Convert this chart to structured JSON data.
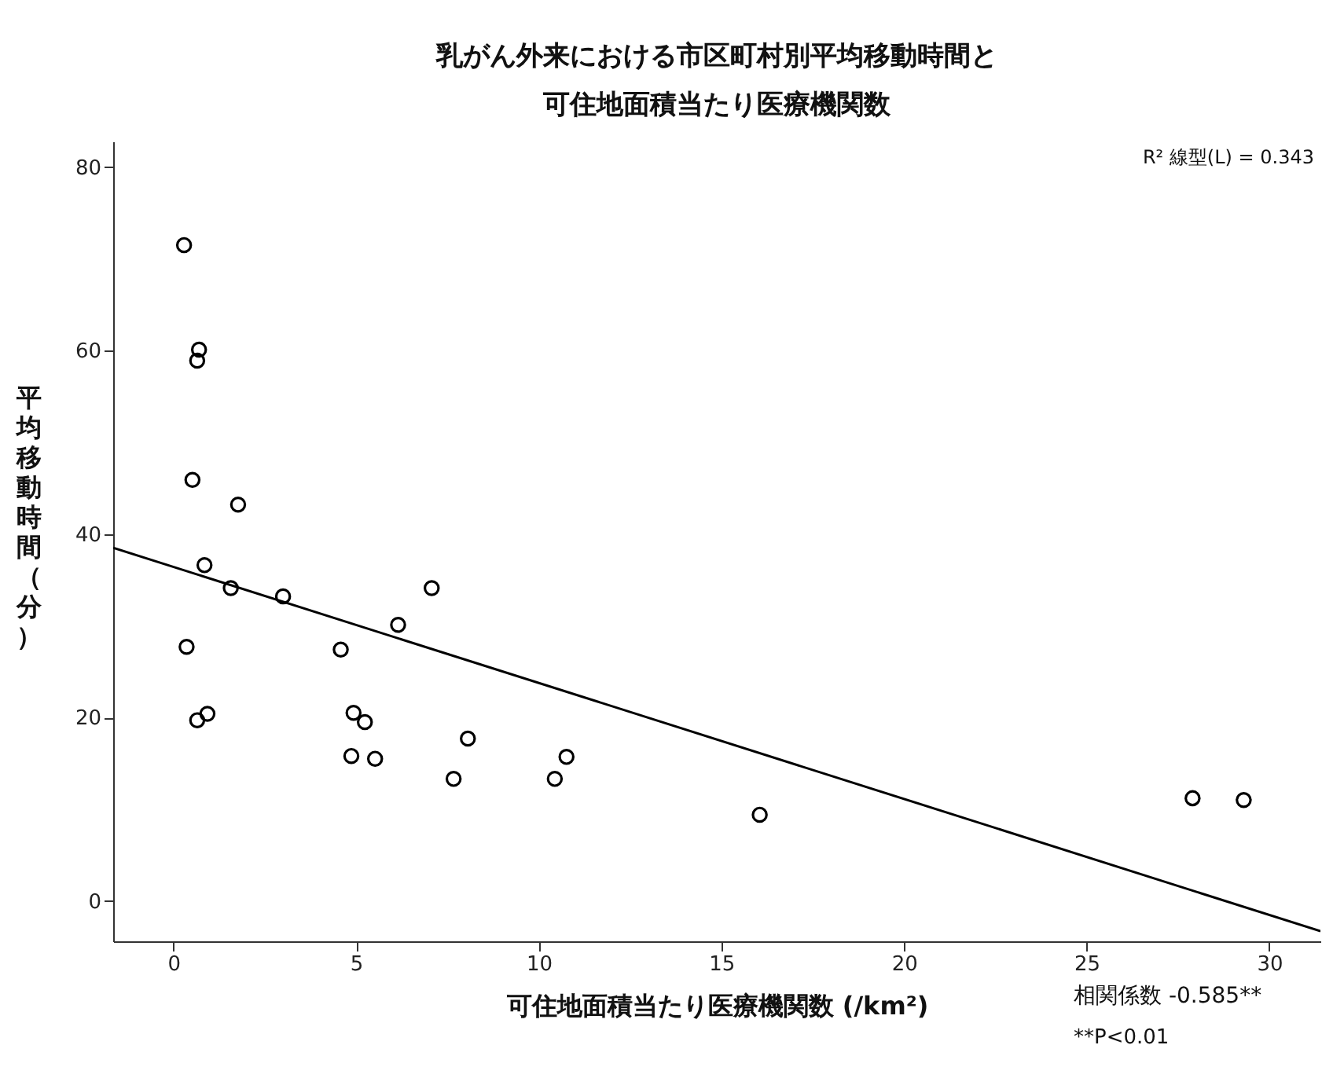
{
  "chart_data": {
    "type": "scatter",
    "title": "乳がん外来における市区町村別平均移動時間と",
    "subtitle": "可住地面積当たり医療機関数",
    "xlabel": "可住地面積当たり医療機関数 (/km²)",
    "ylabel": "平均移動時間（分）",
    "xlim": [
      -1.65,
      31.4
    ],
    "ylim": [
      -4.4,
      82.8
    ],
    "xticks": [
      0,
      5,
      10,
      15,
      20,
      25,
      30
    ],
    "yticks": [
      0,
      20,
      40,
      60,
      80
    ],
    "marker": "circle",
    "series": [
      {
        "color": "#000000",
        "x": [
          0.29,
          0.7,
          0.65,
          0.52,
          1.77,
          0.85,
          1.57,
          3.0,
          7.07,
          6.15,
          0.36,
          4.58,
          0.65,
          0.93,
          4.93,
          5.24,
          4.87,
          5.52,
          8.06,
          7.67,
          10.44,
          10.76,
          16.05,
          27.9,
          29.3
        ],
        "values": [
          71.5,
          60.1,
          58.9,
          45.9,
          43.2,
          36.6,
          34.1,
          33.2,
          34.1,
          30.1,
          27.7,
          27.4,
          19.7,
          20.4,
          20.5,
          19.5,
          15.8,
          15.5,
          17.7,
          13.3,
          13.3,
          15.7,
          9.4,
          11.2,
          11.0
        ]
      },
      {
        "type": "line",
        "color": "#000000",
        "marker": "none",
        "x": [
          -1.65,
          31.4
        ],
        "values": [
          38.5,
          -3.3
        ]
      }
    ],
    "annotations": [
      "R² 線型(L) = 0.343",
      "相関係数  -0.585**",
      "**P<0.01"
    ]
  }
}
